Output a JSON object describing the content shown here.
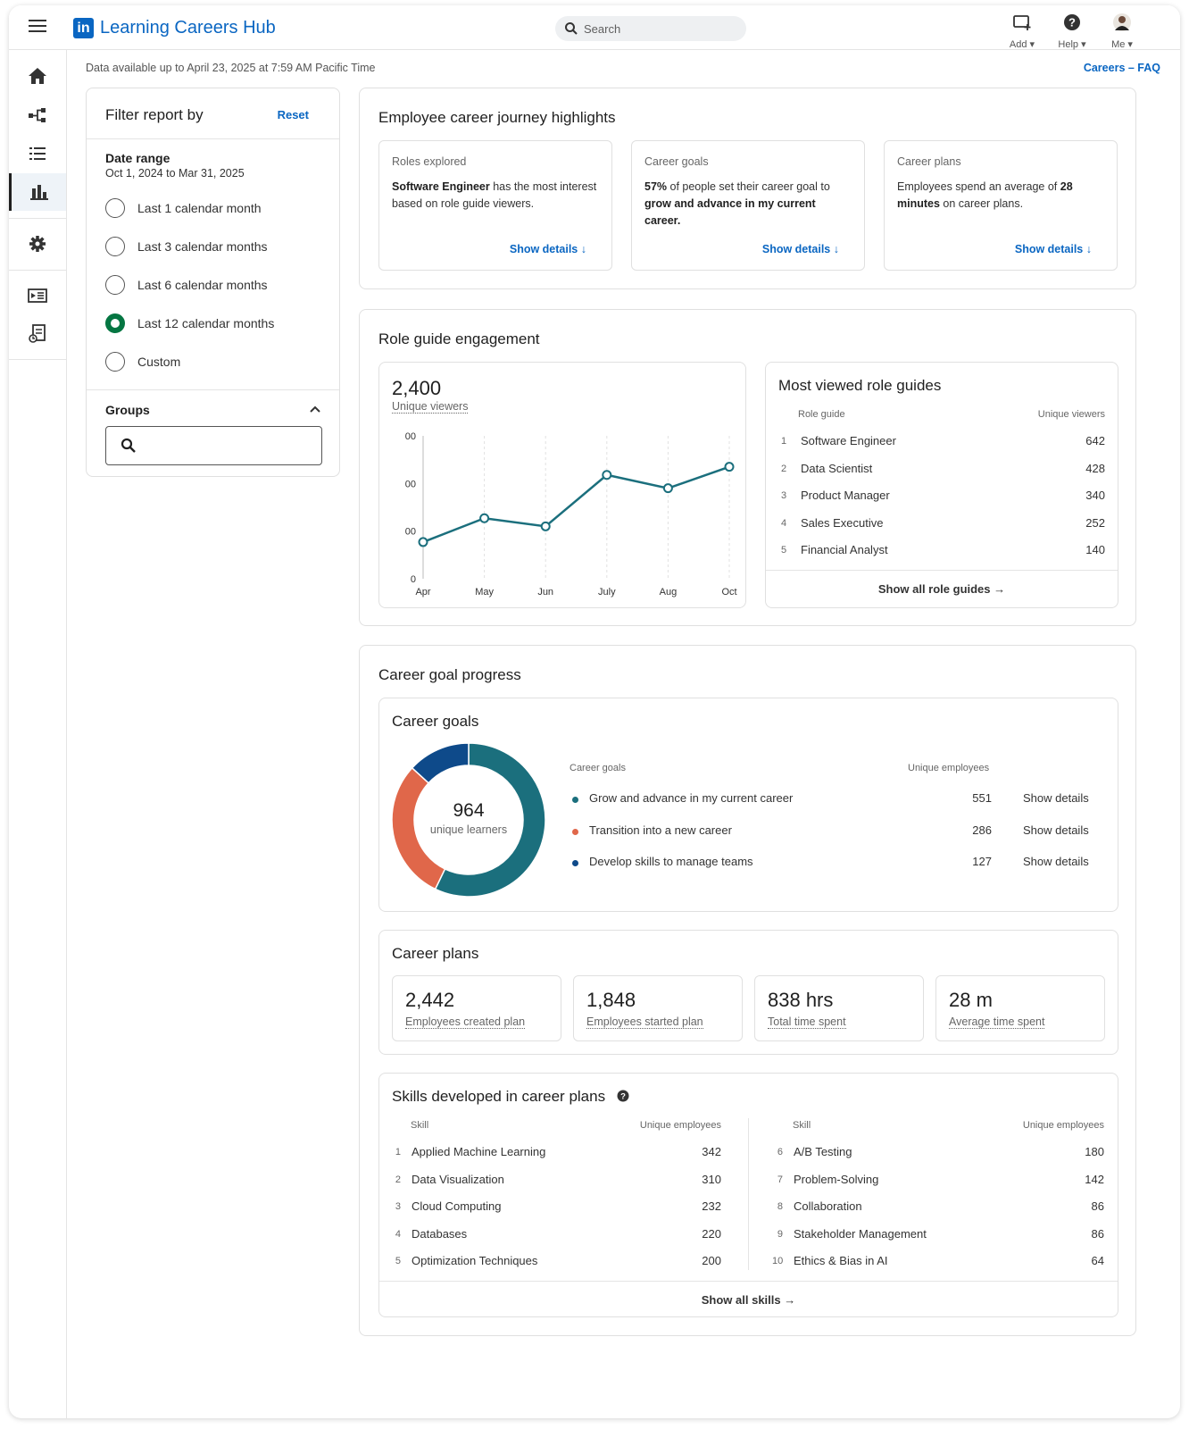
{
  "header": {
    "logo_text": "in",
    "app_title": "Learning Careers Hub",
    "search_placeholder": "Search",
    "add_label": "Add",
    "help_label": "Help",
    "me_label": "Me"
  },
  "sidebar": {
    "icons": [
      "home-icon",
      "org-chart-icon",
      "list-icon",
      "bar-chart-icon",
      "gear-icon",
      "video-catalog-icon",
      "report-icon"
    ]
  },
  "data_note": "Data available up to April 23, 2025 at 7:59 AM Pacific Time",
  "faq_link": "Careers – FAQ",
  "filter": {
    "title": "Filter report by",
    "reset": "Reset",
    "date_range_title": "Date range",
    "date_range_value": "Oct 1, 2024 to Mar 31, 2025",
    "options": [
      "Last 1 calendar month",
      "Last 3 calendar months",
      "Last 6 calendar months",
      "Last 12 calendar months",
      "Custom"
    ],
    "selected_index": 3,
    "groups_title": "Groups"
  },
  "highlights": {
    "title": "Employee career journey highlights",
    "show_details": "Show details",
    "cards": [
      {
        "kicker": "Roles explored",
        "bold1": "Software Engineer",
        "text1": " has the most interest based on role guide viewers.",
        "bold2": "",
        "text2": ""
      },
      {
        "kicker": "Career goals",
        "bold1": "57%",
        "text1": " of people set their career goal to ",
        "bold2": "grow and advance in my current career.",
        "text2": ""
      },
      {
        "kicker": "Career plans",
        "bold1": "",
        "text1": "Employees spend an average of ",
        "bold2": "28 minutes",
        "text2": " on career plans."
      }
    ]
  },
  "role_guide": {
    "title": "Role guide engagement",
    "viewers_value": "2,400",
    "viewers_label": "Unique viewers",
    "most_viewed_title": "Most viewed role guides",
    "col_role": "Role guide",
    "col_viewers": "Unique viewers",
    "rows": [
      {
        "idx": "1",
        "name": "Software Engineer",
        "value": "642"
      },
      {
        "idx": "2",
        "name": "Data Scientist",
        "value": "428"
      },
      {
        "idx": "3",
        "name": "Product Manager",
        "value": "340"
      },
      {
        "idx": "4",
        "name": "Sales Executive",
        "value": "252"
      },
      {
        "idx": "5",
        "name": "Financial Analyst",
        "value": "140"
      }
    ],
    "show_all": "Show all role guides"
  },
  "chart_data": {
    "type": "line",
    "categories": [
      "Apr",
      "May",
      "Jun",
      "July",
      "Aug",
      "Oct"
    ],
    "values": [
      0.77,
      1.27,
      1.1,
      2.18,
      1.9,
      2.35
    ],
    "y_tick_labels": [
      "0",
      "00",
      "00",
      "00"
    ],
    "ylim": [
      0,
      3
    ],
    "grid": "vertical",
    "color": "#1b6f7d"
  },
  "career_goal_progress": {
    "title": "Career goal progress",
    "goals_title": "Career goals",
    "donut_value": "964",
    "donut_label": "unique learners",
    "col_goal": "Career goals",
    "col_emp": "Unique employees",
    "show_details": "Show details",
    "goals": [
      {
        "name": "Grow and advance in my current career",
        "value": 551,
        "value_text": "551",
        "color": "#1b6f7d"
      },
      {
        "name": "Transition into a new career",
        "value": 286,
        "value_text": "286",
        "color": "#e0674a"
      },
      {
        "name": "Develop skills to manage teams",
        "value": 127,
        "value_text": "127",
        "color": "#0e4a8a"
      }
    ]
  },
  "career_plans": {
    "title": "Career plans",
    "stats": [
      {
        "value": "2,442",
        "label": "Employees created plan"
      },
      {
        "value": "1,848",
        "label": "Employees started plan"
      },
      {
        "value": "838 hrs",
        "label": "Total time spent"
      },
      {
        "value": "28 m",
        "label": "Average time spent"
      }
    ]
  },
  "skills": {
    "title": "Skills developed in career plans",
    "col_skill": "Skill",
    "col_emp": "Unique employees",
    "left": [
      {
        "idx": "1",
        "name": "Applied Machine Learning",
        "value": "342"
      },
      {
        "idx": "2",
        "name": "Data Visualization",
        "value": "310"
      },
      {
        "idx": "3",
        "name": "Cloud Computing",
        "value": "232"
      },
      {
        "idx": "4",
        "name": "Databases",
        "value": "220"
      },
      {
        "idx": "5",
        "name": "Optimization Techniques",
        "value": "200"
      }
    ],
    "right": [
      {
        "idx": "6",
        "name": "A/B Testing",
        "value": "180"
      },
      {
        "idx": "7",
        "name": "Problem-Solving",
        "value": "142"
      },
      {
        "idx": "8",
        "name": "Collaboration",
        "value": "86"
      },
      {
        "idx": "9",
        "name": "Stakeholder Management",
        "value": "86"
      },
      {
        "idx": "10",
        "name": "Ethics & Bias in AI",
        "value": "64"
      }
    ],
    "show_all": "Show all skills"
  }
}
